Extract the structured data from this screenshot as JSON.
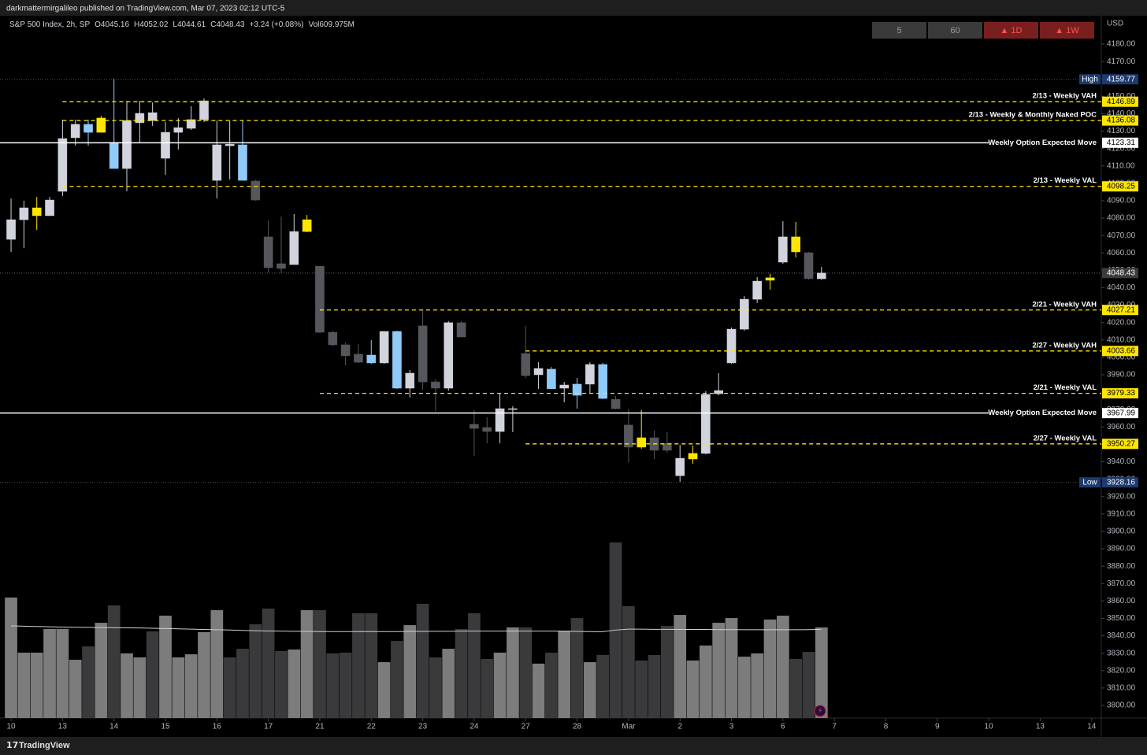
{
  "page": {
    "published": "darkmattermirgalileo published on TradingView.com, Mar 07, 2023 02:12 UTC-5",
    "brand": "TradingView"
  },
  "toolbar": {
    "intervals": [
      "5",
      "60",
      "▲ 1D",
      "▲ 1W"
    ]
  },
  "chart_data": {
    "type": "candlestick",
    "currency": "USD",
    "legend": {
      "symbol": "S&P 500 Index, 2h, SP",
      "open": "O4045.16",
      "high": "H4052.02",
      "low": "L4044.61",
      "close": "C4048.43",
      "change": "+3.24 (+0.08%)",
      "volume": "Vol609.975M"
    },
    "x": [
      0,
      1,
      2,
      3,
      4,
      5,
      6,
      7,
      8,
      9,
      10,
      11,
      12,
      13,
      14,
      15,
      16,
      17,
      18,
      19,
      20,
      21,
      22,
      23,
      24,
      25,
      26,
      27,
      28,
      29,
      30,
      31,
      32,
      33,
      34,
      35,
      36,
      37,
      38,
      39,
      40,
      41,
      42,
      43,
      44,
      45,
      46,
      47,
      48,
      49,
      50,
      51,
      52,
      53,
      54,
      55,
      56,
      57,
      58,
      59,
      60,
      61,
      62,
      63
    ],
    "open": [
      4067.8,
      4079.1,
      4081.4,
      4081.4,
      4095.4,
      4126.2,
      4133.9,
      4129.3,
      4123.5,
      4108.5,
      4134.8,
      4140.6,
      4114.4,
      4129.3,
      4131.6,
      4136.6,
      4101.7,
      4122.5,
      4122.1,
      4101.3,
      4069.2,
      4053.8,
      4053.3,
      4072.3,
      4052.4,
      4014.4,
      4007.2,
      4001.8,
      4001.3,
      3996.8,
      4014.9,
      3982.3,
      4018.1,
      3985.9,
      3982.3,
      4019.9,
      3961.5,
      3959.7,
      3957.4,
      3970.1,
      4002.2,
      3990.0,
      3993.2,
      3982.3,
      3984.6,
      3984.6,
      3995.9,
      3975.9,
      3961.1,
      3953.8,
      3953.8,
      3950.6,
      3932.0,
      3941.6,
      3944.8,
      3979.1,
      3996.8,
      4016.2,
      4033.4,
      4044.3,
      4054.7,
      4069.2,
      4060.1,
      4045.16
    ],
    "high": [
      4091.3,
      4090.0,
      4092.2,
      4092.2,
      4136.6,
      4136.6,
      4136.6,
      4138.8,
      4160.0,
      4147.4,
      4147.4,
      4146.5,
      4135.2,
      4137.5,
      4144.3,
      4148.8,
      4136.1,
      4136.1,
      4136.1,
      4102.2,
      4078.7,
      4081.0,
      4082.3,
      4081.8,
      4052.4,
      4015.3,
      4008.5,
      4007.6,
      4009.9,
      4014.9,
      4015.3,
      3992.7,
      4027.5,
      3987.3,
      4020.8,
      4020.8,
      3969.6,
      3965.6,
      3979.1,
      3971.9,
      4018.1,
      3997.2,
      3994.5,
      3985.9,
      3988.2,
      3997.2,
      3996.8,
      3977.8,
      3970.1,
      3969.6,
      3957.9,
      3957.0,
      3949.7,
      3949.3,
      3980.5,
      3990.9,
      4017.1,
      4035.2,
      4046.1,
      4047.9,
      4078.2,
      4077.8,
      4060.6,
      4052.02
    ],
    "low": [
      4060.6,
      4062.8,
      4073.2,
      4081.4,
      4092.7,
      4121.6,
      4121.6,
      4129.3,
      4108.5,
      4095.4,
      4123.0,
      4133.0,
      4104.9,
      4119.4,
      4130.7,
      4135.2,
      4091.3,
      4102.2,
      4101.7,
      4090.0,
      4048.8,
      4048.4,
      4053.3,
      4071.9,
      4014.0,
      4006.3,
      3995.4,
      3996.8,
      3996.3,
      3996.3,
      3981.9,
      3976.9,
      3981.4,
      3969.2,
      3980.9,
      4011.7,
      3943.4,
      3950.6,
      3950.6,
      3957.0,
      3988.2,
      3981.9,
      3981.9,
      3974.2,
      3970.5,
      3979.1,
      3976.0,
      3970.1,
      3939.7,
      3947.5,
      3941.6,
      3945.2,
      3928.5,
      3938.9,
      3944.3,
      3978.2,
      3996.3,
      4015.3,
      4031.2,
      4038.9,
      4053.8,
      4057.4,
      4044.7,
      4044.61
    ],
    "close": [
      4079.1,
      4085.9,
      4085.9,
      4090.4,
      4125.7,
      4133.9,
      4129.3,
      4137.5,
      4108.5,
      4136.1,
      4140.2,
      4136.1,
      4129.3,
      4132.0,
      4136.6,
      4147.4,
      4122.1,
      4121.6,
      4101.7,
      4090.4,
      4051.5,
      4051.1,
      4072.3,
      4079.1,
      4014.4,
      4007.2,
      4000.9,
      3997.2,
      3996.8,
      4014.9,
      3982.3,
      3990.9,
      3985.9,
      3982.3,
      4019.9,
      4011.7,
      3959.2,
      3957.4,
      3970.5,
      3970.5,
      3989.5,
      3993.6,
      3981.9,
      3984.1,
      3978.2,
      3995.9,
      3976.4,
      3970.5,
      3948.4,
      3948.4,
      3946.6,
      3946.6,
      3942.0,
      3944.8,
      3978.7,
      3980.9,
      4016.2,
      4033.4,
      4043.8,
      4045.7,
      4069.2,
      4060.6,
      4045.2,
      4048.43
    ],
    "colors": [
      "#d1d4dc",
      "#d1d4dc",
      "#ffe600",
      "#d1d4dc",
      "#d1d4dc",
      "#d1d4dc",
      "#90caf9",
      "#ffe600",
      "#90caf9",
      "#d1d4dc",
      "#d1d4dc",
      "#d1d4dc",
      "#d1d4dc",
      "#d1d4dc",
      "#d1d4dc",
      "#d1d4dc",
      "#d1d4dc",
      "#d1d4dc",
      "#90caf9",
      "#55575c",
      "#55575c",
      "#55575c",
      "#d1d4dc",
      "#ffe600",
      "#55575c",
      "#55575c",
      "#55575c",
      "#55575c",
      "#90caf9",
      "#d1d4dc",
      "#90caf9",
      "#d1d4dc",
      "#55575c",
      "#55575c",
      "#d1d4dc",
      "#55575c",
      "#55575c",
      "#55575c",
      "#d1d4dc",
      "#d1d4dc",
      "#55575c",
      "#d1d4dc",
      "#90caf9",
      "#d1d4dc",
      "#90caf9",
      "#d1d4dc",
      "#90caf9",
      "#55575c",
      "#55575c",
      "#ffe600",
      "#55575c",
      "#55575c",
      "#d1d4dc",
      "#ffe600",
      "#d1d4dc",
      "#d1d4dc",
      "#d1d4dc",
      "#d1d4dc",
      "#d1d4dc",
      "#ffe600",
      "#d1d4dc",
      "#ffe600",
      "#55575c",
      "#d1d4dc"
    ],
    "volume": [
      811,
      440,
      440,
      599,
      599,
      392,
      482,
      641,
      758,
      435,
      408,
      583,
      689,
      408,
      429,
      578,
      726,
      408,
      466,
      631,
      737,
      451,
      461,
      726,
      726,
      435,
      440,
      705,
      705,
      376,
      519,
      625,
      769,
      408,
      466,
      599,
      705,
      398,
      440,
      610,
      610,
      366,
      440,
      588,
      673,
      376,
      424,
      1182,
      753,
      387,
      424,
      620,
      694,
      387,
      488,
      641,
      673,
      413,
      435,
      663,
      689,
      398,
      445,
      610
    ],
    "volume_ma": [
      620,
      618,
      616,
      614,
      612,
      611,
      610,
      609,
      608,
      607,
      606,
      604,
      602,
      600,
      598,
      596,
      594,
      592,
      590,
      588,
      586,
      585,
      584,
      583,
      582,
      582,
      582,
      582,
      582,
      582,
      582,
      583,
      583,
      584,
      584,
      585,
      585,
      585,
      585,
      585,
      585,
      585,
      585,
      584,
      583,
      582,
      581,
      592,
      598,
      598,
      597,
      597,
      596,
      596,
      596,
      595,
      595,
      594,
      594,
      594,
      594,
      594,
      595,
      597
    ],
    "volume_up_color": "#7c7c7c",
    "volume_down_color": "#3a3a3c",
    "volume_ma_color": "#cfcfcf",
    "volume_ylim": [
      0,
      4728
    ],
    "xlim": [
      -0.86,
      84.75
    ],
    "xticks": [
      {
        "value": 0,
        "label": "10"
      },
      {
        "value": 4,
        "label": "13"
      },
      {
        "value": 8,
        "label": "14"
      },
      {
        "value": 12,
        "label": "15"
      },
      {
        "value": 16,
        "label": "16"
      },
      {
        "value": 20,
        "label": "17"
      },
      {
        "value": 24,
        "label": "21"
      },
      {
        "value": 28,
        "label": "22"
      },
      {
        "value": 32,
        "label": "23"
      },
      {
        "value": 36,
        "label": "24"
      },
      {
        "value": 40,
        "label": "27"
      },
      {
        "value": 44,
        "label": "28"
      },
      {
        "value": 48,
        "label": "Mar"
      },
      {
        "value": 52,
        "label": "2"
      },
      {
        "value": 56,
        "label": "3"
      },
      {
        "value": 60,
        "label": "6"
      },
      {
        "value": 64,
        "label": "7"
      },
      {
        "value": 68,
        "label": "8"
      },
      {
        "value": 72,
        "label": "9"
      },
      {
        "value": 76,
        "label": "10"
      },
      {
        "value": 80,
        "label": "13"
      },
      {
        "value": 84,
        "label": "14"
      }
    ],
    "ylim": [
      3792.76,
      4196.29
    ],
    "yticks": [
      {
        "value": 4180,
        "label": "4180.00"
      },
      {
        "value": 4170,
        "label": "4170.00"
      },
      {
        "value": 4160,
        "label": "4160.00"
      },
      {
        "value": 4150,
        "label": "4150.00"
      },
      {
        "value": 4140,
        "label": "4140.00"
      },
      {
        "value": 4130,
        "label": "4130.00"
      },
      {
        "value": 4120,
        "label": "4120.00"
      },
      {
        "value": 4110,
        "label": "4110.00"
      },
      {
        "value": 4100,
        "label": "4100.00"
      },
      {
        "value": 4090,
        "label": "4090.00"
      },
      {
        "value": 4080,
        "label": "4080.00"
      },
      {
        "value": 4070,
        "label": "4070.00"
      },
      {
        "value": 4060,
        "label": "4060.00"
      },
      {
        "value": 4050,
        "label": "4050.00"
      },
      {
        "value": 4040,
        "label": "4040.00"
      },
      {
        "value": 4030,
        "label": "4030.00"
      },
      {
        "value": 4020,
        "label": "4020.00"
      },
      {
        "value": 4010,
        "label": "4010.00"
      },
      {
        "value": 4000,
        "label": "4000.00"
      },
      {
        "value": 3990,
        "label": "3990.00"
      },
      {
        "value": 3980,
        "label": "3980.00"
      },
      {
        "value": 3970,
        "label": "3970.00"
      },
      {
        "value": 3960,
        "label": "3960.00"
      },
      {
        "value": 3950,
        "label": "3950.00"
      },
      {
        "value": 3940,
        "label": "3940.00"
      },
      {
        "value": 3930,
        "label": "3930.00"
      },
      {
        "value": 3920,
        "label": "3920.00"
      },
      {
        "value": 3910,
        "label": "3910.00"
      },
      {
        "value": 3900,
        "label": "3900.00"
      },
      {
        "value": 3890,
        "label": "3890.00"
      },
      {
        "value": 3880,
        "label": "3880.00"
      },
      {
        "value": 3870,
        "label": "3870.00"
      },
      {
        "value": 3860,
        "label": "3860.00"
      },
      {
        "value": 3850,
        "label": "3850.00"
      },
      {
        "value": 3840,
        "label": "3840.00"
      },
      {
        "value": 3830,
        "label": "3830.00"
      },
      {
        "value": 3820,
        "label": "3820.00"
      },
      {
        "value": 3810,
        "label": "3810.00"
      },
      {
        "value": 3800,
        "label": "3800.00"
      }
    ],
    "levels": [
      {
        "label": "2/13 - Weekly VAH",
        "value": 4146.89,
        "from": 4,
        "style": "dashed",
        "color": "#ffe600"
      },
      {
        "label": "2/13 - Weekly & Monthly Naked POC",
        "value": 4136.08,
        "from": 4,
        "style": "dashed",
        "color": "#ffe600"
      },
      {
        "label": "Weekly Option Expected Move",
        "value": 4123.31,
        "style": "solid",
        "color": "#ffffff"
      },
      {
        "label": "2/13 - Weekly VAL",
        "value": 4098.25,
        "from": 4,
        "style": "dashed",
        "color": "#ffe600"
      },
      {
        "label": "2/21 - Weekly VAH",
        "value": 4027.21,
        "from": 24,
        "style": "dashed",
        "color": "#ffe600"
      },
      {
        "label": "2/27 - Weekly VAH",
        "value": 4003.66,
        "from": 40,
        "style": "dashed",
        "color": "#ffe600"
      },
      {
        "label": "2/21 - Weekly VAL",
        "value": 3979.33,
        "from": 24,
        "style": "dashed",
        "color": "#ffe600"
      },
      {
        "label": "Weekly Option Expected Move",
        "value": 3967.99,
        "style": "solid",
        "color": "#ffffff"
      },
      {
        "label": "2/27 - Weekly VAL",
        "value": 3950.27,
        "from": 40,
        "style": "dashed",
        "color": "#ffe600"
      }
    ],
    "high_mark": {
      "label": "High",
      "value": 4159.77
    },
    "low_mark": {
      "label": "Low",
      "value": 3928.16
    },
    "last_price": 4048.43
  }
}
